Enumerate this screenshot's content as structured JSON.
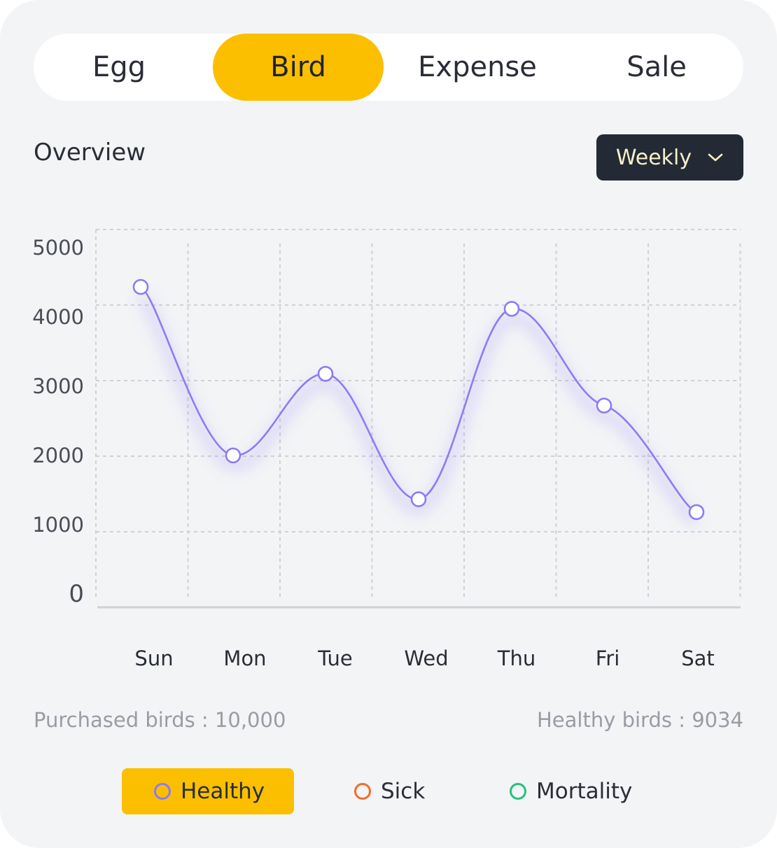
{
  "tabs": [
    {
      "label": "Egg",
      "active": false
    },
    {
      "label": "Bird",
      "active": true
    },
    {
      "label": "Expense",
      "active": false
    },
    {
      "label": "Sale",
      "active": false
    }
  ],
  "overview": {
    "title": "Overview",
    "period": "Weekly",
    "period_icon": "chevron-down-icon"
  },
  "stats": {
    "purchased": "Purchased birds : 10,000",
    "healthy": "Healthy birds : 9034"
  },
  "legend": [
    {
      "label": "Healthy",
      "color": "#8b7cf6",
      "active": true
    },
    {
      "label": "Sick",
      "color": "#f26c2a",
      "active": false
    },
    {
      "label": "Mortality",
      "color": "#22c27a",
      "active": false
    }
  ],
  "colors": {
    "accent": "#fbbf00",
    "line": "#8b7cf6",
    "dark_button": "#232a35"
  },
  "chart_data": {
    "type": "line",
    "categories": [
      "Sun",
      "Mon",
      "Tue",
      "Wed",
      "Thu",
      "Fri",
      "Sat"
    ],
    "series": [
      {
        "values": [
          4240,
          2010,
          3090,
          1430,
          3950,
          2670,
          1260
        ]
      }
    ],
    "y_ticks": [
      "5000",
      "4000",
      "3000",
      "2000",
      "1000",
      "0"
    ],
    "ylim": [
      0,
      5000
    ],
    "grid": true,
    "smooth": true
  }
}
